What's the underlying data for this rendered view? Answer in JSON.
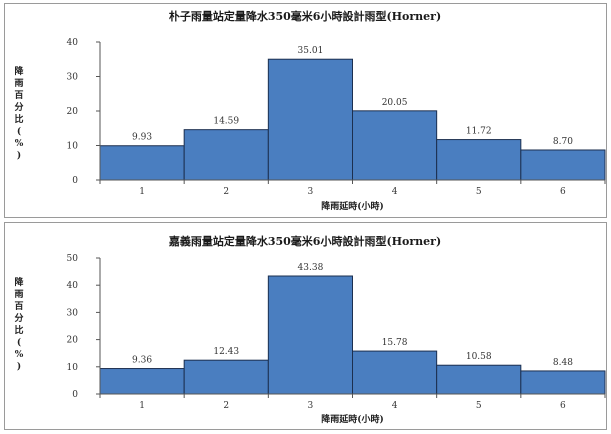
{
  "chart_data": [
    {
      "type": "bar",
      "title": "朴子雨量站定量降水350毫米6小時設計雨型(Horner)",
      "xlabel": "降雨延時(小時)",
      "ylabel": "降雨百分比(%)",
      "categories": [
        "1",
        "2",
        "3",
        "4",
        "5",
        "6"
      ],
      "values": [
        9.93,
        14.59,
        35.01,
        20.05,
        11.72,
        8.7
      ],
      "data_labels": [
        "9.93",
        "14.59",
        "35.01",
        "20.05",
        "11.72",
        "8.70"
      ],
      "yticks": [
        "0",
        "10",
        "20",
        "30",
        "40"
      ],
      "ylim": [
        0,
        40
      ],
      "grid": false,
      "bar_color": "#4a7ec0"
    },
    {
      "type": "bar",
      "title": "嘉義雨量站定量降水350毫米6小時設計雨型(Horner)",
      "xlabel": "降雨延時(小時)",
      "ylabel": "降雨百分比(%)",
      "categories": [
        "1",
        "2",
        "3",
        "4",
        "5",
        "6"
      ],
      "values": [
        9.36,
        12.43,
        43.38,
        15.78,
        10.58,
        8.48
      ],
      "data_labels": [
        "9.36",
        "12.43",
        "43.38",
        "15.78",
        "10.58",
        "8.48"
      ],
      "yticks": [
        "0",
        "10",
        "20",
        "30",
        "40",
        "50"
      ],
      "ylim": [
        0,
        50
      ],
      "grid": false,
      "bar_color": "#4a7ec0"
    }
  ]
}
